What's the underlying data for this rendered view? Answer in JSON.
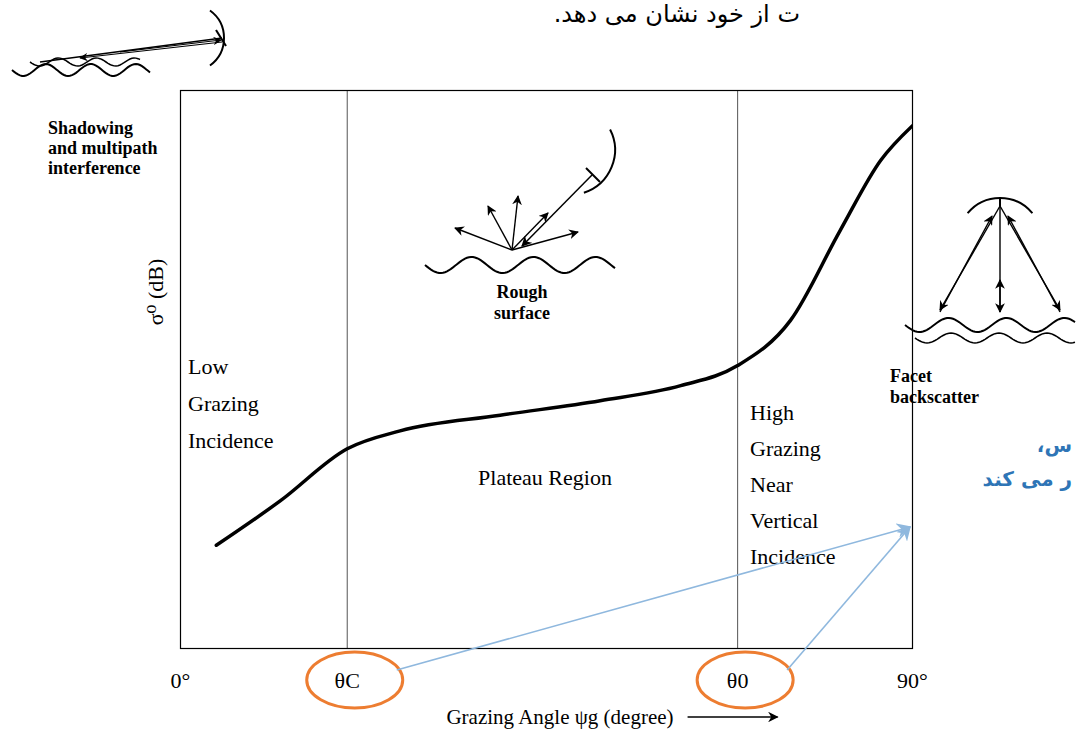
{
  "chart_data": {
    "type": "line",
    "x_label": "Grazing Angle ψg (degree)",
    "y_label": "σ⁰ (dB)",
    "x": [
      4.4,
      12.3,
      20.5,
      27,
      39.3,
      51.6,
      61.5,
      68.5,
      75,
      81.1,
      86.1,
      90
    ],
    "values": [
      18.5,
      26.5,
      35.8,
      39,
      41.8,
      44.4,
      47.1,
      50.7,
      58.8,
      74.9,
      87.5,
      93.7
    ],
    "color": "#000000",
    "xlim": [
      0,
      90
    ],
    "ylim": [
      0,
      100
    ],
    "xticks": [
      {
        "value": 0,
        "label": "0°"
      },
      {
        "value": 20.5,
        "label": "θC"
      },
      {
        "value": 68.5,
        "label": "θ0"
      },
      {
        "value": 90,
        "label": "90°"
      }
    ],
    "grid": true,
    "tick_labels": "x",
    "annotations": [
      "Shadowing\nand multipath\ninterference",
      "Rough\nsurface",
      "Facet\nbackscatter",
      "Low\nGrazing\nIncidence",
      "Plateau Region",
      "High\nGrazing\nNear\nVertical\nIncidence",
      "ت از خود نشان می دهد.",
      "س،",
      "ر می کند"
    ]
  }
}
